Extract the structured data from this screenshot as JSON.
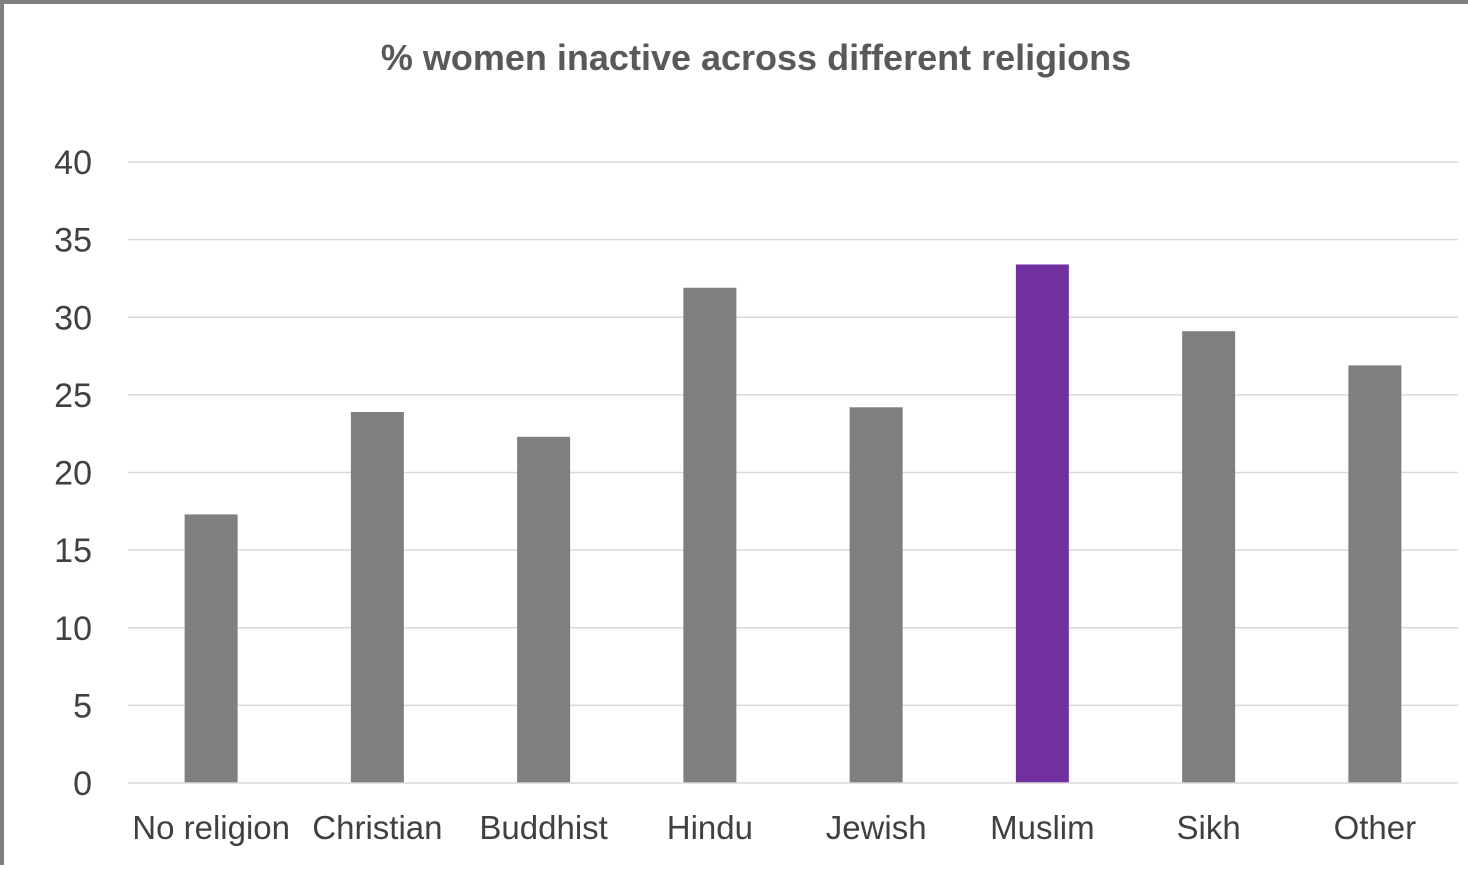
{
  "chart_data": {
    "type": "bar",
    "title": "% women inactive across different religions",
    "xlabel": "",
    "ylabel": "",
    "categories": [
      "No religion",
      "Christian",
      "Buddhist",
      "Hindu",
      "Jewish",
      "Muslim",
      "Sikh",
      "Other"
    ],
    "values": [
      17.3,
      23.9,
      22.3,
      31.9,
      24.2,
      33.4,
      29.1,
      26.9
    ],
    "ylim": [
      0,
      40
    ],
    "yticks": [
      "0",
      "5",
      "10",
      "15",
      "20",
      "25",
      "30",
      "35",
      "40"
    ],
    "grid": true,
    "legend": "none",
    "colors": {
      "default_bar": "#7f7f7f",
      "highlight_bar": "#7030a0",
      "highlight_category": "Muslim",
      "gridline": "#d9d9d9",
      "axis_line": "#d9d9d9",
      "frame": "#7f7f7f"
    }
  }
}
